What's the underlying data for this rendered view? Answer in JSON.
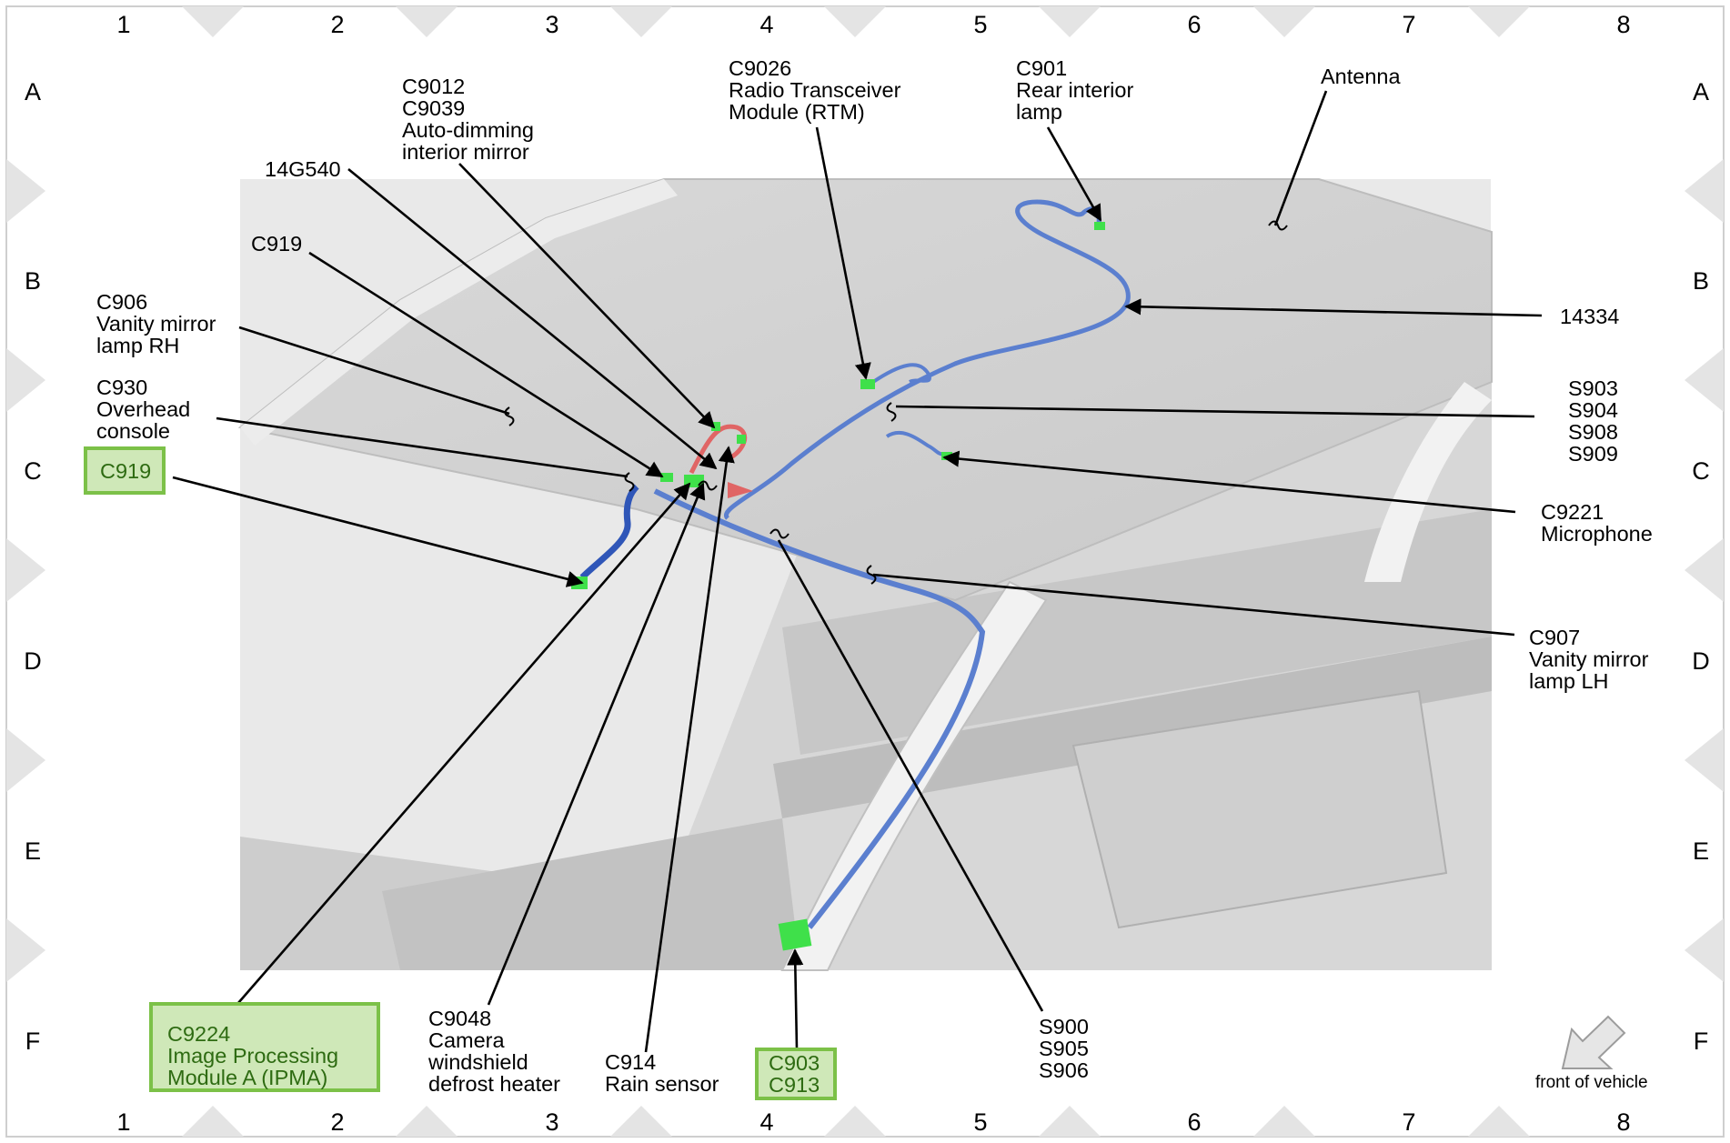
{
  "grid": {
    "columns": [
      "1",
      "2",
      "3",
      "4",
      "5",
      "6",
      "7",
      "8"
    ],
    "rows": [
      "A",
      "B",
      "C",
      "D",
      "E",
      "F"
    ]
  },
  "labels": {
    "c9012": [
      "C9012",
      "C9039",
      "Auto-dimming",
      "interior mirror"
    ],
    "c9026": [
      "C9026",
      "Radio Transceiver",
      "Module (RTM)"
    ],
    "c901": [
      "C901",
      "Rear interior",
      "lamp"
    ],
    "antenna": [
      "Antenna"
    ],
    "g14g540": [
      "14G540"
    ],
    "c919_top": [
      "C919"
    ],
    "c906": [
      "C906",
      "Vanity mirror",
      "lamp RH"
    ],
    "c930": [
      "C930",
      "Overhead",
      "console"
    ],
    "c919_box": [
      "C919"
    ],
    "w14334": [
      "14334"
    ],
    "s903": [
      "S903",
      "S904",
      "S908",
      "S909"
    ],
    "c9221": [
      "C9221",
      "Microphone"
    ],
    "c907": [
      "C907",
      "Vanity mirror",
      "lamp LH"
    ],
    "c9224": [
      "C9224",
      "Image Processing",
      "Module A (IPMA)"
    ],
    "c9048": [
      "C9048",
      "Camera",
      "windshield",
      "defrost heater"
    ],
    "c914": [
      "C914",
      "Rain sensor"
    ],
    "c903": [
      "C903",
      "C913"
    ],
    "s900": [
      "S900",
      "S905",
      "S906"
    ]
  },
  "direction_note": "front of vehicle",
  "colors": {
    "highlight_fill": "#cfe8b8",
    "highlight_border": "#7cc148",
    "highlight_text": "#2e6b12",
    "harness_blue": "#5b7fcf",
    "harness_dark_blue": "#2f56b8",
    "harness_red": "#e06565",
    "connector_green": "#3fe04a",
    "body_gray": "#d0d0d0"
  },
  "icons": {
    "frame_markers": "diamond-marker-icon",
    "direction": "front-arrow-icon",
    "splice": "splice-tilde-icon"
  }
}
